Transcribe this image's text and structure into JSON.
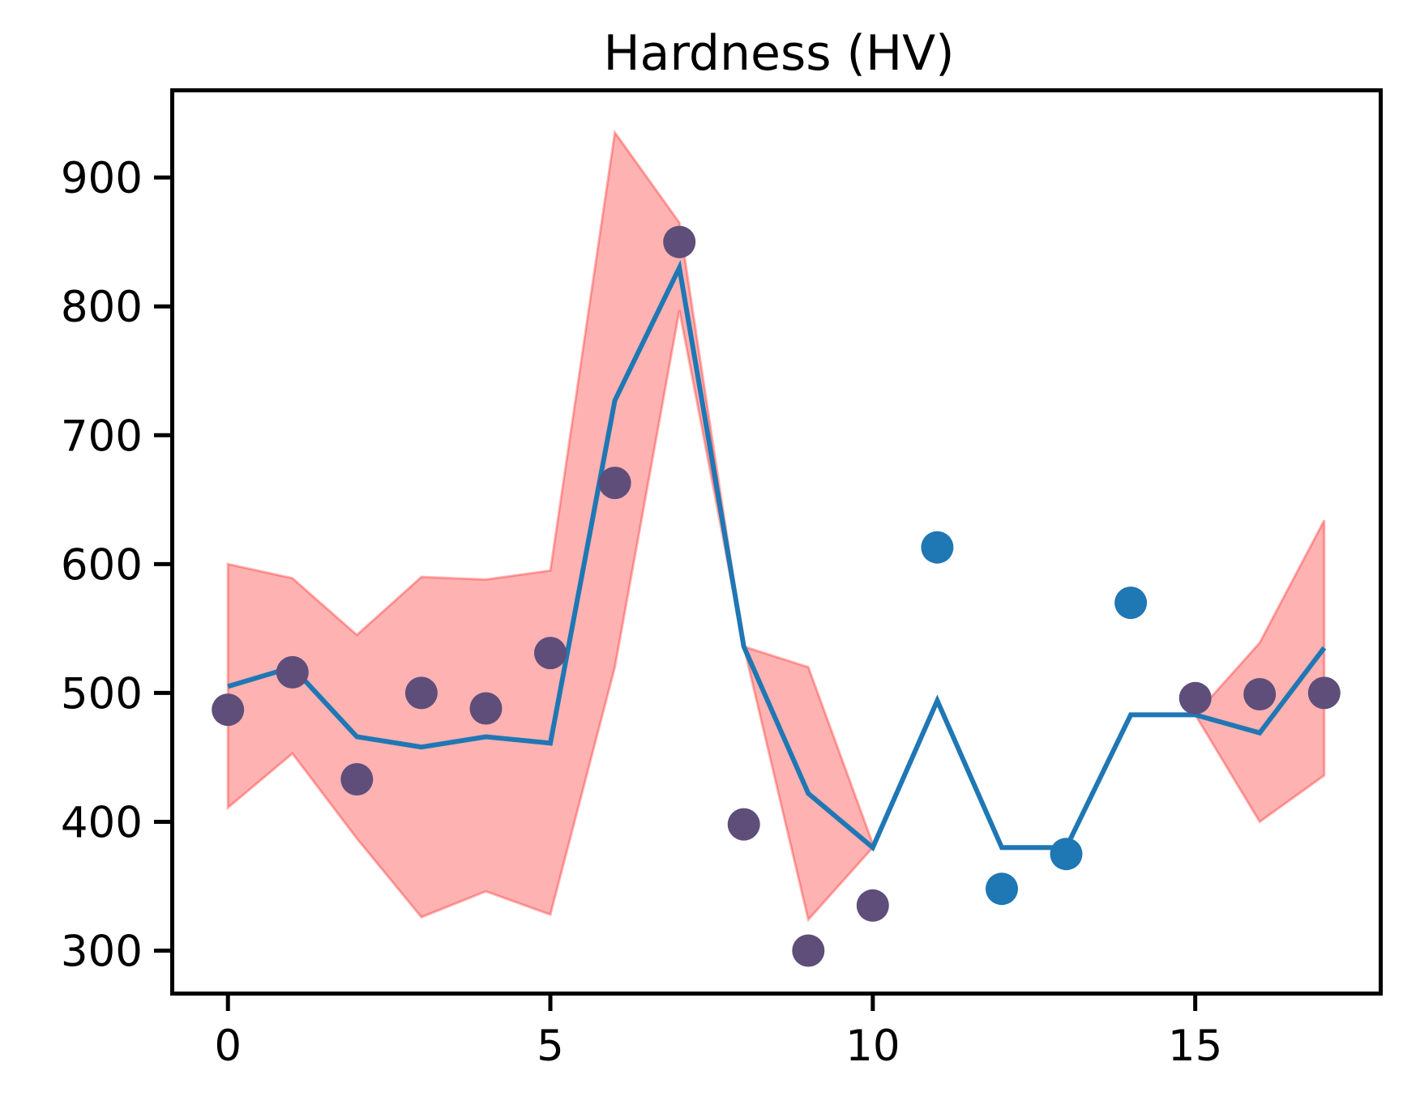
{
  "chart_data": {
    "type": "line",
    "title": "Hardness (HV)",
    "xlabel": "",
    "ylabel": "",
    "xlim": [
      -0.87,
      17.87
    ],
    "ylim": [
      267,
      968
    ],
    "xticks": [
      0,
      5,
      10,
      15
    ],
    "yticks": [
      300,
      400,
      500,
      600,
      700,
      800,
      900
    ],
    "grid": false,
    "legend": "none",
    "colors": {
      "line": "#1f77b4",
      "points": "#1f77b4",
      "band_fill": "#ff0000",
      "band_fill_opacity": 0.3,
      "points_in_band": "#5e4e79"
    },
    "prediction_line": {
      "x": [
        0,
        1,
        2,
        3,
        4,
        5,
        6,
        7,
        8,
        9,
        10,
        11,
        12,
        13,
        14,
        15,
        16,
        17
      ],
      "y": [
        505,
        520,
        466,
        458,
        466,
        461,
        727,
        830,
        536,
        422,
        380,
        494,
        380,
        380,
        483,
        483,
        469,
        535
      ]
    },
    "measured_points": {
      "x": [
        0,
        1,
        2,
        3,
        4,
        5,
        6,
        7,
        8,
        9,
        10,
        11,
        12,
        13,
        14,
        15,
        16,
        17
      ],
      "y": [
        487,
        516,
        433,
        500,
        488,
        531,
        663,
        850,
        398,
        300,
        335,
        613,
        348,
        375,
        570,
        496,
        499,
        500
      ]
    },
    "confidence_band": {
      "segments": [
        {
          "x": [
            0,
            1,
            2,
            3,
            4,
            5,
            6,
            7,
            8,
            9,
            10
          ],
          "upper": [
            600,
            589,
            545,
            590,
            588,
            595,
            935,
            865,
            536,
            520,
            383
          ],
          "lower": [
            411,
            453,
            387,
            326,
            346,
            328,
            520,
            797,
            536,
            324,
            380
          ]
        },
        {
          "x": [
            15,
            16,
            17
          ],
          "upper": [
            483,
            539,
            634
          ],
          "lower": [
            483,
            400,
            436
          ]
        }
      ]
    }
  }
}
